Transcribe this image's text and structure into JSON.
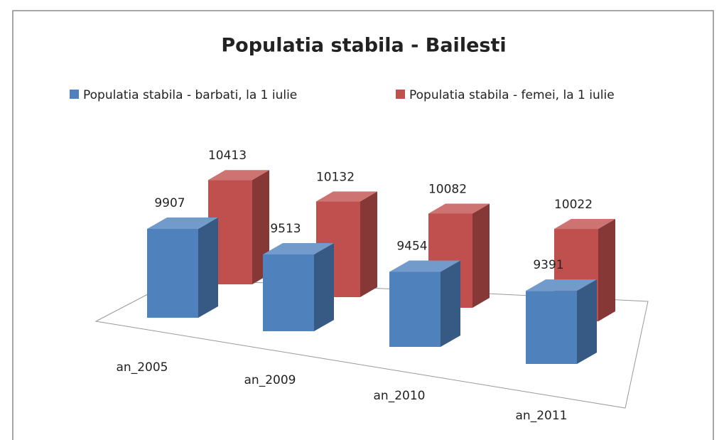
{
  "chart_data": {
    "type": "bar3d",
    "title": "Populatia stabila - Bailesti",
    "categories": [
      "an_2005",
      "an_2009",
      "an_2010",
      "an_2011"
    ],
    "series": [
      {
        "name": "Populatia stabila  - barbati, la 1 iulie",
        "color": "#4f81bd",
        "values": [
          9907,
          9513,
          9454,
          9391
        ]
      },
      {
        "name": "Populatia stabila  - femei, la 1 iulie",
        "color": "#c0504d",
        "values": [
          10413,
          10132,
          10082,
          10022
        ]
      }
    ],
    "ylim": [
      7000,
      11000
    ],
    "legend": "top"
  }
}
